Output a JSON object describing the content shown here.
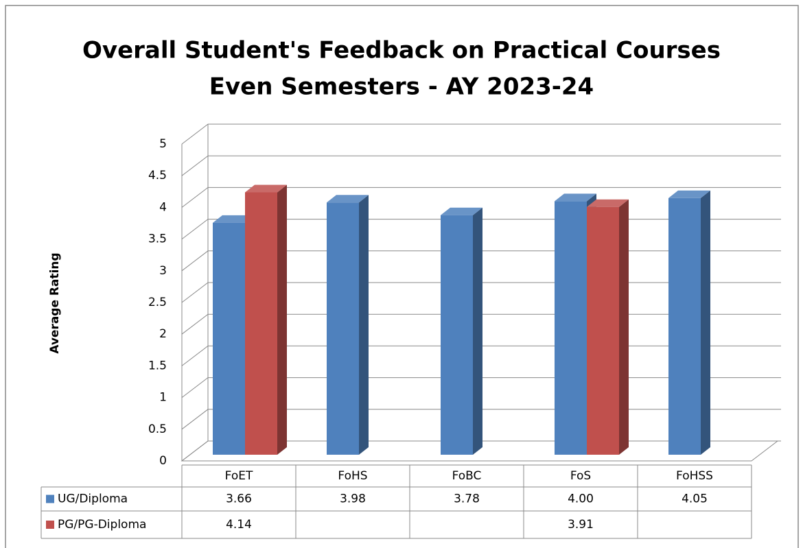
{
  "chart_data": {
    "type": "bar3d",
    "title": "Overall Student's Feedback on Practical Courses",
    "subtitle": "Even Semesters - AY 2023-24",
    "y_label": "Average Rating",
    "categories": [
      "FoET",
      "FoHS",
      "FoBC",
      "FoS",
      "FoHSS"
    ],
    "series": [
      {
        "name": "UG/Diploma",
        "color": "#4f81bd",
        "values": [
          3.66,
          3.98,
          3.78,
          4.0,
          4.05
        ],
        "value_labels": [
          "3.66",
          "3.98",
          "3.78",
          "4.00",
          "4.05"
        ]
      },
      {
        "name": "PG/PG-Diploma",
        "color": "#c0504d",
        "values": [
          4.14,
          null,
          null,
          3.91,
          null
        ],
        "value_labels": [
          "4.14",
          null,
          null,
          "3.91",
          null
        ]
      }
    ],
    "ylim": [
      0,
      5
    ],
    "yticks": [
      0,
      0.5,
      1,
      1.5,
      2,
      2.5,
      3,
      3.5,
      4,
      4.5,
      5
    ],
    "grid": true,
    "data_table": true
  }
}
